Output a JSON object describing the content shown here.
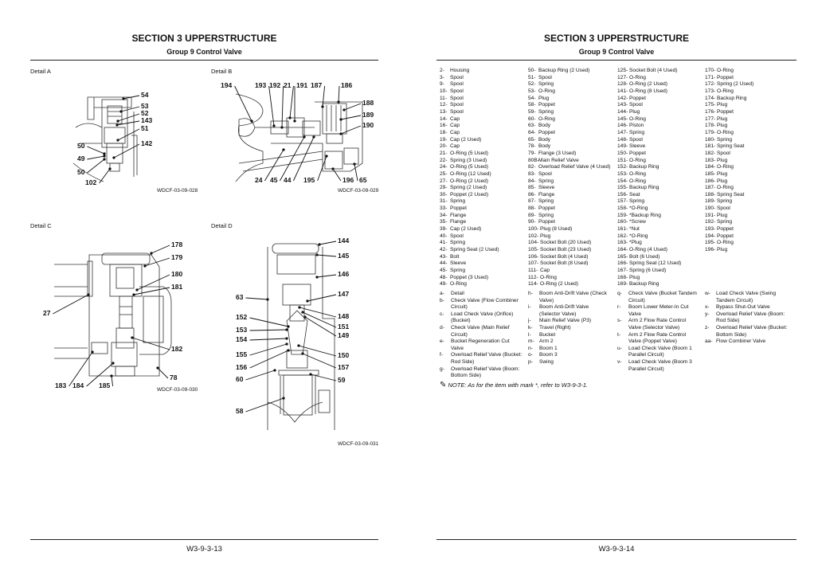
{
  "left_page": {
    "section_title": "SECTION 3 UPPERSTRUCTURE",
    "group_title": "Group 9 Control Valve",
    "page_number": "W3-9-3-13",
    "details": [
      {
        "title": "Detail A",
        "caption": "WDCF-03-09-028",
        "callouts": [
          "54",
          "53",
          "52",
          "143",
          "51",
          "142",
          "50",
          "49",
          "50",
          "102"
        ]
      },
      {
        "title": "Detail B",
        "caption": "WDCF-03-09-029",
        "callouts": [
          "194",
          "193",
          "192",
          "21",
          "191",
          "187",
          "186",
          "188",
          "189",
          "190",
          "24",
          "45",
          "44",
          "195",
          "196",
          "65"
        ]
      },
      {
        "title": "Detail C",
        "caption": "WDCF-03-09-030",
        "callouts": [
          "178",
          "179",
          "180",
          "181",
          "27",
          "182",
          "78",
          "183",
          "184",
          "185"
        ]
      },
      {
        "title": "Detail D",
        "caption": "WDCF-03-09-031",
        "callouts": [
          "144",
          "145",
          "146",
          "147",
          "148",
          "151",
          "149",
          "150",
          "157",
          "59",
          "63",
          "152",
          "153",
          "154",
          "155",
          "156",
          "60",
          "58"
        ]
      }
    ]
  },
  "right_page": {
    "section_title": "SECTION 3 UPPERSTRUCTURE",
    "group_title": "Group 9 Control Valve",
    "page_number": "W3-9-3-14",
    "parts_columns": [
      [
        [
          "2-",
          "Housing"
        ],
        [
          "3-",
          "Spool"
        ],
        [
          "9-",
          "Spool"
        ],
        [
          "10-",
          "Spool"
        ],
        [
          "11-",
          "Spool"
        ],
        [
          "12-",
          "Spool"
        ],
        [
          "13-",
          "Spool"
        ],
        [
          "14-",
          "Cap"
        ],
        [
          "16-",
          "Cap"
        ],
        [
          "18-",
          "Cap"
        ],
        [
          "19-",
          "Cap (2 Used)"
        ],
        [
          "20-",
          "Cap"
        ],
        [
          "21-",
          "O-Ring (5 Used)"
        ],
        [
          "22-",
          "Spring (3 Used)"
        ],
        [
          "24-",
          "O-Ring (5 Used)"
        ],
        [
          "25-",
          "O-Ring (12 Used)"
        ],
        [
          "27-",
          "O-Ring (2 Used)"
        ],
        [
          "29-",
          "Spring (2 Used)"
        ],
        [
          "30-",
          "Poppet (2 Used)"
        ],
        [
          "31-",
          "Spring"
        ],
        [
          "33-",
          "Poppet"
        ],
        [
          "34-",
          "Flange"
        ],
        [
          "35-",
          "Flange"
        ],
        [
          "39-",
          "Cap (2 Used)"
        ],
        [
          "40-",
          "Spool"
        ],
        [
          "41-",
          "Spring"
        ],
        [
          "42-",
          "Spring Seat (2 Used)"
        ],
        [
          "43-",
          "Bolt"
        ],
        [
          "44-",
          "Sleeve"
        ],
        [
          "45-",
          "Spring"
        ],
        [
          "48-",
          "Poppet (3 Used)"
        ],
        [
          "49-",
          "O-Ring"
        ]
      ],
      [
        [
          "50-",
          "Backup Ring (2 Used)"
        ],
        [
          "51-",
          "Spool"
        ],
        [
          "52-",
          "Spring"
        ],
        [
          "53-",
          "O-Ring"
        ],
        [
          "54-",
          "Plug"
        ],
        [
          "58-",
          "Poppet"
        ],
        [
          "59-",
          "Spring"
        ],
        [
          "60-",
          "O-Ring"
        ],
        [
          "63-",
          "Body"
        ],
        [
          "64-",
          "Poppet"
        ],
        [
          "65-",
          "Body"
        ],
        [
          "78-",
          "Body"
        ],
        [
          "79-",
          "Flange (3 Used)"
        ],
        [
          "80B-",
          "Main Relief Valve"
        ],
        [
          "82-",
          "Overload Relief Valve (4 Used)"
        ],
        [
          "83-",
          "Spool"
        ],
        [
          "84-",
          "Spring"
        ],
        [
          "85-",
          "Sleeve"
        ],
        [
          "86-",
          "Flange"
        ],
        [
          "87-",
          "Spring"
        ],
        [
          "88-",
          "Poppet"
        ],
        [
          "89-",
          "Spring"
        ],
        [
          "90-",
          "Poppet"
        ],
        [
          "100-",
          "Plug (8 Used)"
        ],
        [
          "102-",
          "Plug"
        ],
        [
          "104-",
          "Socket Bolt (20 Used)"
        ],
        [
          "105-",
          "Socket Bolt (23 Used)"
        ],
        [
          "106-",
          "Socket Bolt (4 Used)"
        ],
        [
          "107-",
          "Socket Bolt (8 Used)"
        ],
        [
          "111-",
          "Cap"
        ],
        [
          "112-",
          "O-Ring"
        ],
        [
          "114-",
          "O-Ring (2 Used)"
        ]
      ],
      [
        [
          "125-",
          "Socket Bolt (4 Used)"
        ],
        [
          "127-",
          "O-Ring"
        ],
        [
          "128-",
          "O-Ring (2 Used)"
        ],
        [
          "141-",
          "O-Ring (8 Used)"
        ],
        [
          "142-",
          "Poppet"
        ],
        [
          "143-",
          "Spool"
        ],
        [
          "144-",
          "Plug"
        ],
        [
          "145-",
          "O-Ring"
        ],
        [
          "146-",
          "Piston"
        ],
        [
          "147-",
          "Spring"
        ],
        [
          "148-",
          "Spool"
        ],
        [
          "149-",
          "Sleeve"
        ],
        [
          "150-",
          "Poppet"
        ],
        [
          "151-",
          "O-Ring"
        ],
        [
          "152-",
          "Backup Ring"
        ],
        [
          "153-",
          "O-Ring"
        ],
        [
          "154-",
          "O-Ring"
        ],
        [
          "155-",
          "Backup Ring"
        ],
        [
          "156-",
          "Seat"
        ],
        [
          "157-",
          "Spring"
        ],
        [
          "158-",
          "*O-Ring"
        ],
        [
          "159-",
          "*Backup Ring"
        ],
        [
          "160-",
          "*Screw"
        ],
        [
          "161-",
          "*Nut"
        ],
        [
          "162-",
          "*O-Ring"
        ],
        [
          "163-",
          "*Plug"
        ],
        [
          "164-",
          "O-Ring (4 Used)"
        ],
        [
          "165-",
          "Bolt (6 Used)"
        ],
        [
          "166-",
          "Spring Seat (12 Used)"
        ],
        [
          "167-",
          "Spring (6 Used)"
        ],
        [
          "168-",
          "Plug"
        ],
        [
          "169-",
          "Backup Ring"
        ]
      ],
      [
        [
          "170-",
          "O-Ring"
        ],
        [
          "171-",
          "Poppet"
        ],
        [
          "172-",
          "Spring (2 Used)"
        ],
        [
          "173-",
          "O-Ring"
        ],
        [
          "174-",
          "Backup Ring"
        ],
        [
          "175-",
          "Plug"
        ],
        [
          "176-",
          "Poppet"
        ],
        [
          "177-",
          "Plug"
        ],
        [
          "178-",
          "Plug"
        ],
        [
          "179-",
          "O-Ring"
        ],
        [
          "180-",
          "Spring"
        ],
        [
          "181-",
          "Spring Seat"
        ],
        [
          "182-",
          "Spool"
        ],
        [
          "183-",
          "Plug"
        ],
        [
          "184-",
          "O-Ring"
        ],
        [
          "185-",
          "Plug"
        ],
        [
          "186-",
          "Plug"
        ],
        [
          "187-",
          "O-Ring"
        ],
        [
          "188-",
          "Spring Seat"
        ],
        [
          "189-",
          "Spring"
        ],
        [
          "190-",
          "Spool"
        ],
        [
          "191-",
          "Plug"
        ],
        [
          "192-",
          "Spring"
        ],
        [
          "193-",
          "Poppet"
        ],
        [
          "194-",
          "Poppet"
        ],
        [
          "195-",
          "O-Ring"
        ],
        [
          "196-",
          "Plug"
        ]
      ]
    ],
    "legend_columns": [
      [
        [
          "a-",
          "Detail"
        ],
        [
          "b-",
          "Check Valve (Flow Combiner Circuit)"
        ],
        [
          "c-",
          "Load Check Valve (Orifice) (Bucket)"
        ],
        [
          "d-",
          "Check Valve (Main Relief Circuit)"
        ],
        [
          "e-",
          "Bucket Regeneration Cut Valve"
        ],
        [
          "f-",
          "Overload Relief Valve (Bucket: Rod Side)"
        ],
        [
          "g-",
          "Overload Relief Valve (Boom: Bottom Side)"
        ]
      ],
      [
        [
          "h-",
          "Boom Anti-Drift Valve (Check Valve)"
        ],
        [
          "i-",
          "Boom Anti-Drift Valve (Selector Valve)"
        ],
        [
          "j-",
          "Main Relief Valve (P3)"
        ],
        [
          "k-",
          "Travel (Right)"
        ],
        [
          "l-",
          "Bucket"
        ],
        [
          "m-",
          "Arm 2"
        ],
        [
          "n-",
          "Boom 1"
        ],
        [
          "o-",
          "Boom 3"
        ],
        [
          "p-",
          "Swing"
        ]
      ],
      [
        [
          "q-",
          "Check Valve (Bucket Tandem Circuit)"
        ],
        [
          "r-",
          "Boom Lower Meter-In Cut Valve"
        ],
        [
          "s-",
          "Arm 2 Flow Rate Control Valve (Selector Valve)"
        ],
        [
          "t-",
          "Arm 2 Flow Rate Control Valve (Poppet Valve)"
        ],
        [
          "u-",
          "Load Check Valve (Boom 1 Parallel Circuit)"
        ],
        [
          "v-",
          "Load Check Valve (Boom 3 Parallel Circuit)"
        ]
      ],
      [
        [
          "w-",
          "Load Check Valve (Swing Tandem Circuit)"
        ],
        [
          "x-",
          "Bypass Shut-Out Valve"
        ],
        [
          "y-",
          "Overload Relief Valve (Boom: Rod Side)"
        ],
        [
          "z-",
          "Overload Relief Valve (Bucket: Bottom Side)"
        ],
        [
          "aa-",
          "Flow Combiner Valve"
        ]
      ]
    ],
    "note": {
      "icon": "pencil-note-icon",
      "text": "NOTE:    As for the item with mark *, refer to W3-9-3-1."
    }
  }
}
